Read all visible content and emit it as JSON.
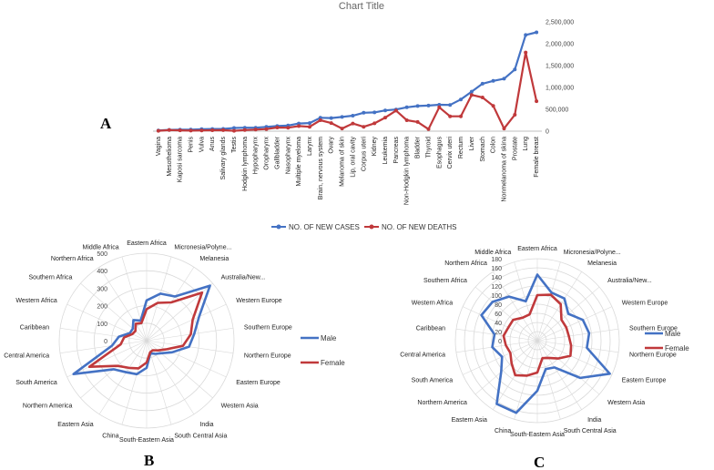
{
  "colors": {
    "male": "#4472C4",
    "female": "#C0393B",
    "grid": "#d9d9d9"
  },
  "panel_labels": {
    "a": "A",
    "b": "B",
    "c": "C"
  },
  "chart_data": [
    {
      "type": "line",
      "title": "Chart Title",
      "ylim": [
        0,
        2500000
      ],
      "yticks": [
        "0",
        "500,000",
        "1,000,000",
        "1,500,000",
        "2,000,000",
        "2,500,000"
      ],
      "categories": [
        "Vagina",
        "Mesothelioma",
        "Kaposi sarcoma",
        "Penis",
        "Vulva",
        "Anus",
        "Salivary glands",
        "Testis",
        "Hodgkin lymphoma",
        "Hypopharynx",
        "Oropharynx",
        "Gallbladder",
        "Nasopharynx",
        "Multiple myeloma",
        "Larynx",
        "Brain, nervous system",
        "Ovary",
        "Melanoma of skin",
        "Lip, oral cavity",
        "Corpus uteri",
        "Kidney",
        "Leukemia",
        "Pancreas",
        "Non-Hodgkin lymphoma",
        "Bladder",
        "Thyroid",
        "Esophagus",
        "Cervix uteri",
        "Rectum",
        "Liver",
        "Stomach",
        "Colon",
        "Nonmelanoma of skina",
        "Prostate",
        "Lung",
        "Female breast"
      ],
      "series": [
        {
          "name": "NO. OF NEW CASES",
          "values": [
            17000,
            30000,
            34000,
            36000,
            45000,
            50000,
            53000,
            72000,
            80000,
            80000,
            98000,
            116000,
            130000,
            176000,
            185000,
            306000,
            300000,
            325000,
            355000,
            420000,
            430000,
            475000,
            495000,
            545000,
            575000,
            586000,
            605000,
            600000,
            725000,
            905000,
            1085000,
            1150000,
            1200000,
            1410000,
            2200000,
            2260000
          ]
        },
        {
          "name": "NO. OF NEW DEATHS",
          "values": [
            8000,
            25000,
            19000,
            13000,
            17000,
            20000,
            22000,
            9000,
            26000,
            35000,
            48000,
            84000,
            80000,
            117000,
            99000,
            250000,
            185000,
            60000,
            175000,
            100000,
            180000,
            310000,
            470000,
            250000,
            210000,
            45000,
            545000,
            340000,
            340000,
            830000,
            770000,
            580000,
            60000,
            375000,
            1800000,
            685000
          ]
        }
      ],
      "legend_position": "bottom"
    },
    {
      "type": "radar",
      "rlim": [
        0,
        500
      ],
      "rticks": [
        "0",
        "100",
        "200",
        "300",
        "400",
        "500"
      ],
      "categories": [
        "Eastern Africa",
        "Micronesia/Polyne...",
        "Melanesia",
        "Australia/New...",
        "Western Europe",
        "Southern Europe",
        "Northern Europe",
        "Eastern Europe",
        "Western Asia",
        "India",
        "South Central Asia",
        "South-Eastern Asia",
        "China",
        "Eastern Asia",
        "Northern America",
        "South America",
        "Central America",
        "Caribbean",
        "Western Africa",
        "Southern Africa",
        "Northern Africa",
        "Middle Africa"
      ],
      "series": [
        {
          "name": "Male",
          "values": [
            230,
            280,
            300,
            480,
            330,
            275,
            245,
            160,
            110,
            90,
            75,
            155,
            200,
            215,
            250,
            460,
            200,
            160,
            105,
            105,
            140,
            120
          ]
        },
        {
          "name": "Female",
          "values": [
            180,
            225,
            260,
            420,
            290,
            255,
            210,
            120,
            85,
            65,
            70,
            125,
            165,
            185,
            220,
            360,
            150,
            130,
            90,
            85,
            115,
            105
          ]
        }
      ],
      "legend_position": "right"
    },
    {
      "type": "radar",
      "rlim": [
        0,
        180
      ],
      "rticks": [
        "0",
        "20",
        "40",
        "60",
        "80",
        "100",
        "120",
        "140",
        "160",
        "180"
      ],
      "categories": [
        "Eastern Africa",
        "Micronesia/Polyne...",
        "Melanesia",
        "Australia/New...",
        "Western Europe",
        "Southern Europe",
        "Northern Europe",
        "Eastern Europe",
        "Western Asia",
        "India",
        "South Central Asia",
        "South-Eastern Asia",
        "China",
        "Eastern Asia",
        "Northern America",
        "South America",
        "Central America",
        "Caribbean",
        "Western Africa",
        "Southern Africa",
        "Northern Africa",
        "Middle Africa"
      ],
      "series": [
        {
          "name": "Male",
          "values": [
            145,
            110,
            110,
            90,
            110,
            115,
            110,
            175,
            125,
            70,
            65,
            110,
            165,
            165,
            105,
            85,
            100,
            95,
            135,
            130,
            115,
            90
          ]
        },
        {
          "name": "Female",
          "values": [
            100,
            105,
            95,
            70,
            70,
            70,
            75,
            80,
            60,
            45,
            40,
            70,
            80,
            90,
            75,
            65,
            70,
            75,
            70,
            70,
            60,
            60
          ]
        }
      ],
      "legend_position": "right"
    }
  ]
}
